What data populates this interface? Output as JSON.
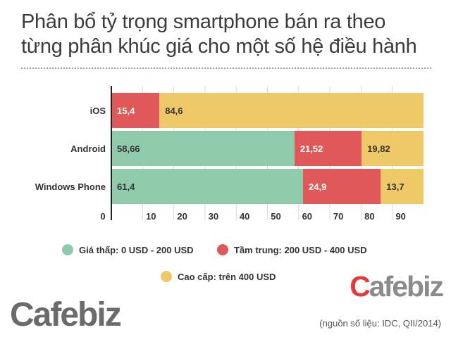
{
  "title": "Phân bổ tỷ trọng smartphone bán ra theo\ntừng phân khúc giá cho một số hệ điều hành",
  "colors": {
    "low": "#8fcbab",
    "mid": "#e15858",
    "high": "#efc868",
    "axis": "#222222"
  },
  "chart_data": {
    "type": "bar",
    "orientation": "horizontal",
    "stacked": true,
    "categories": [
      "iOS",
      "Android",
      "Windows Phone"
    ],
    "series": [
      {
        "name": "Giá thấp: 0 USD - 200 USD",
        "values": [
          0,
          58.66,
          61.4
        ],
        "labels": [
          "",
          "58,66",
          "61,4"
        ],
        "color_key": "low"
      },
      {
        "name": "Tầm trung: 200 USD - 400 USD",
        "values": [
          15.4,
          21.52,
          24.9
        ],
        "labels": [
          "15,4",
          "21,52",
          "24,9"
        ],
        "color_key": "mid"
      },
      {
        "name": "Cao cấp: trên 400 USD",
        "values": [
          84.6,
          19.82,
          13.7
        ],
        "labels": [
          "84,6",
          "19,82",
          "13,7"
        ],
        "color_key": "high"
      }
    ],
    "x_ticks": [
      "0",
      "10",
      "20",
      "30",
      "40",
      "50",
      "60",
      "70",
      "80",
      "90"
    ],
    "xlim": [
      0,
      100
    ],
    "grid": true,
    "legend_position": "bottom"
  },
  "legend": [
    {
      "label": "Giá thấp: 0 USD - 200 USD",
      "color_key": "low"
    },
    {
      "label": "Tầm trung: 200 USD - 400 USD",
      "color_key": "mid"
    },
    {
      "label": "Cao cấp: trên 400 USD",
      "color_key": "high"
    }
  ],
  "brand": {
    "top_c": "C",
    "top_rest": "afebiz",
    "bottom": "Cafebiz"
  },
  "source": "(nguồn số liệu: IDC, QII/2014)"
}
